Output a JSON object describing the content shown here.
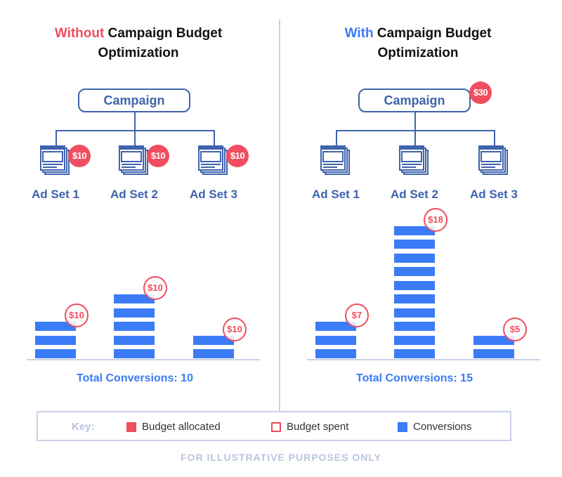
{
  "colors": {
    "budget": "#f04d5e",
    "conversions": "#3b7bf6",
    "structure": "#3f63ad",
    "key_text": "#b8c4dd"
  },
  "left": {
    "title_accent": "Without",
    "title_rest": " Campaign Budget",
    "title_line2": "Optimization",
    "campaign_label": "Campaign",
    "ad_sets": [
      {
        "label": "Ad Set 1",
        "budget": "$10",
        "conversions": 3,
        "spent": "$10"
      },
      {
        "label": "Ad Set 2",
        "budget": "$10",
        "conversions": 5,
        "spent": "$10"
      },
      {
        "label": "Ad Set 3",
        "budget": "$10",
        "conversions": 2,
        "spent": "$10"
      }
    ],
    "total": "Total Conversions: 10"
  },
  "right": {
    "title_accent": "With",
    "title_rest": " Campaign Budget",
    "title_line2": "Optimization",
    "campaign_label": "Campaign",
    "campaign_budget": "$30",
    "ad_sets": [
      {
        "label": "Ad Set 1",
        "conversions": 3,
        "spent": "$7"
      },
      {
        "label": "Ad Set 2",
        "conversions": 10,
        "spent": "$18"
      },
      {
        "label": "Ad Set 3",
        "conversions": 2,
        "spent": "$5"
      }
    ],
    "total": "Total Conversions: 15"
  },
  "key": {
    "label": "Key:",
    "items": [
      "Budget allocated",
      "Budget spent",
      "Conversions"
    ]
  },
  "footer": "FOR ILLUSTRATIVE PURPOSES ONLY"
}
